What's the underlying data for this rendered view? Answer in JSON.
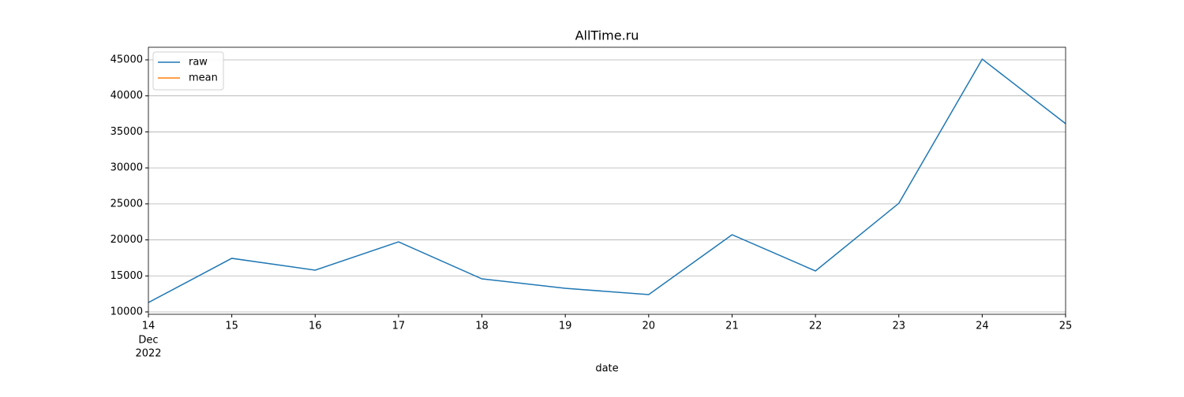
{
  "chart_data": {
    "type": "line",
    "title": "AllTime.ru",
    "xlabel": "date",
    "x": [
      "2022-12-14",
      "2022-12-15",
      "2022-12-16",
      "2022-12-17",
      "2022-12-18",
      "2022-12-19",
      "2022-12-20",
      "2022-12-21",
      "2022-12-22",
      "2022-12-23",
      "2022-12-24",
      "2022-12-25"
    ],
    "series": [
      {
        "name": "raw",
        "color": "#1f77b4",
        "values": [
          11300,
          17440,
          15800,
          19730,
          14590,
          13280,
          12400,
          20720,
          15690,
          25090,
          45100,
          36140
        ]
      },
      {
        "name": "mean",
        "color": "#ff7f0e",
        "values": [
          null,
          null,
          null,
          null,
          null,
          null,
          null,
          null,
          null,
          null,
          null,
          null
        ]
      }
    ],
    "xlim": [
      "2022-12-14",
      "2022-12-25"
    ],
    "xticks": [
      {
        "value": "2022-12-14",
        "label": "14"
      },
      {
        "value": "2022-12-15",
        "label": "15"
      },
      {
        "value": "2022-12-16",
        "label": "16"
      },
      {
        "value": "2022-12-17",
        "label": "17"
      },
      {
        "value": "2022-12-18",
        "label": "18"
      },
      {
        "value": "2022-12-19",
        "label": "19"
      },
      {
        "value": "2022-12-20",
        "label": "20"
      },
      {
        "value": "2022-12-21",
        "label": "21"
      },
      {
        "value": "2022-12-22",
        "label": "22"
      },
      {
        "value": "2022-12-23",
        "label": "23"
      },
      {
        "value": "2022-12-24",
        "label": "24"
      },
      {
        "value": "2022-12-25",
        "label": "25"
      }
    ],
    "xtick_month": "Dec",
    "xtick_year": "2022",
    "ylim": [
      9670,
      46750
    ],
    "yticks": [
      10000,
      15000,
      20000,
      25000,
      30000,
      35000,
      40000,
      45000
    ],
    "grid": "y",
    "legend": "upper left"
  }
}
